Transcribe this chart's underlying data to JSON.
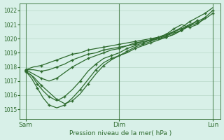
{
  "title": "Pression niveau de la mer( hPa )",
  "background_color": "#d8f0e8",
  "grid_color": "#b8d8c8",
  "line_color": "#2d6a2d",
  "ylim": [
    1014.3,
    1022.5
  ],
  "yticks": [
    1015,
    1016,
    1017,
    1018,
    1019,
    1020,
    1021,
    1022
  ],
  "xtick_labels": [
    "Sam",
    "Dim",
    "Lun"
  ],
  "xtick_positions": [
    0,
    48,
    96
  ],
  "vline_positions": [
    0,
    48,
    96
  ],
  "xlim": [
    -3,
    100
  ]
}
